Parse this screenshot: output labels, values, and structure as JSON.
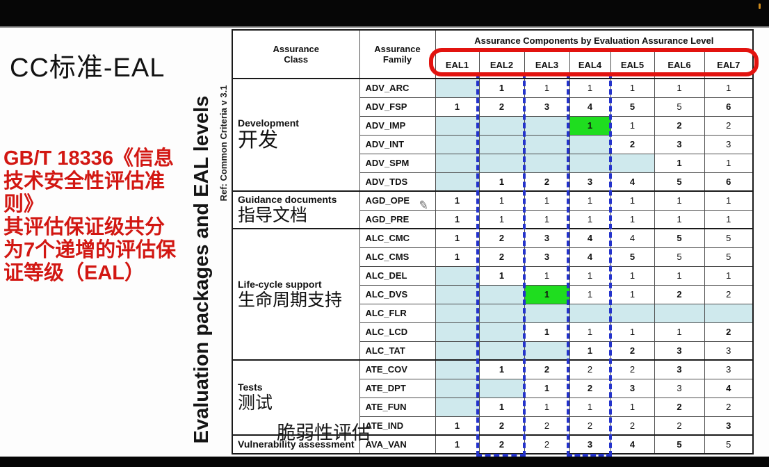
{
  "slide": {
    "title": "CC标准-EAL",
    "red_note": "GB/T 18336《信息\n技术安全性评估准\n则》\n其评估保证级共分\n为7个递增的评估保\n证等级（EAL）",
    "vertical_title": "Evaluation packages and EAL levels",
    "ref_note": "Ref: Common Criteria  v 3.1",
    "annotation_vuln": "脆弱性评估",
    "pencil_icon": "✎"
  },
  "colors": {
    "highlight_teal": "#cfe9ed",
    "highlight_green": "#1fdd1f",
    "red_box": "#e2130f",
    "red_text": "#d21712",
    "blue_dash": "#2433cc"
  },
  "table": {
    "col_class": "Assurance\nClass",
    "col_family": "Assurance\nFamily",
    "header_top": "Assurance Components by Evaluation Assurance Level",
    "eal_levels": [
      "EAL1",
      "EAL2",
      "EAL3",
      "EAL4",
      "EAL5",
      "EAL6",
      "EAL7"
    ],
    "groups": [
      {
        "name_en": "Development",
        "name_zh": "开发",
        "zh_big": true,
        "rows": [
          {
            "family": "ADV_ARC",
            "cells": [
              {
                "v": "",
                "bg": "teal"
              },
              {
                "v": "1",
                "b": 1
              },
              {
                "v": "1"
              },
              {
                "v": "1"
              },
              {
                "v": "1"
              },
              {
                "v": "1"
              },
              {
                "v": "1"
              }
            ]
          },
          {
            "family": "ADV_FSP",
            "cells": [
              {
                "v": "1",
                "b": 1
              },
              {
                "v": "2",
                "b": 1
              },
              {
                "v": "3",
                "b": 1
              },
              {
                "v": "4",
                "b": 1
              },
              {
                "v": "5",
                "b": 1
              },
              {
                "v": "5"
              },
              {
                "v": "6",
                "b": 1
              }
            ]
          },
          {
            "family": "ADV_IMP",
            "cells": [
              {
                "v": "",
                "bg": "teal"
              },
              {
                "v": "",
                "bg": "teal"
              },
              {
                "v": "",
                "bg": "teal"
              },
              {
                "v": "1",
                "b": 1,
                "bg": "green"
              },
              {
                "v": "1"
              },
              {
                "v": "2",
                "b": 1
              },
              {
                "v": "2"
              }
            ]
          },
          {
            "family": "ADV_INT",
            "cells": [
              {
                "v": "",
                "bg": "teal"
              },
              {
                "v": "",
                "bg": "teal"
              },
              {
                "v": "",
                "bg": "teal"
              },
              {
                "v": "",
                "bg": "teal"
              },
              {
                "v": "2",
                "b": 1
              },
              {
                "v": "3",
                "b": 1
              },
              {
                "v": "3"
              }
            ]
          },
          {
            "family": "ADV_SPM",
            "cells": [
              {
                "v": "",
                "bg": "teal"
              },
              {
                "v": "",
                "bg": "teal"
              },
              {
                "v": "",
                "bg": "teal"
              },
              {
                "v": "",
                "bg": "teal"
              },
              {
                "v": "",
                "bg": "teal"
              },
              {
                "v": "1",
                "b": 1
              },
              {
                "v": "1"
              }
            ]
          },
          {
            "family": "ADV_TDS",
            "cells": [
              {
                "v": "",
                "bg": "teal"
              },
              {
                "v": "1",
                "b": 1
              },
              {
                "v": "2",
                "b": 1
              },
              {
                "v": "3",
                "b": 1
              },
              {
                "v": "4",
                "b": 1
              },
              {
                "v": "5",
                "b": 1
              },
              {
                "v": "6",
                "b": 1
              }
            ]
          }
        ]
      },
      {
        "name_en": "Guidance documents",
        "name_zh": "指导文档",
        "rows": [
          {
            "family": "AGD_OPE",
            "cells": [
              {
                "v": "1",
                "b": 1
              },
              {
                "v": "1"
              },
              {
                "v": "1"
              },
              {
                "v": "1"
              },
              {
                "v": "1"
              },
              {
                "v": "1"
              },
              {
                "v": "1"
              }
            ]
          },
          {
            "family": "AGD_PRE",
            "cells": [
              {
                "v": "1",
                "b": 1
              },
              {
                "v": "1"
              },
              {
                "v": "1"
              },
              {
                "v": "1"
              },
              {
                "v": "1"
              },
              {
                "v": "1"
              },
              {
                "v": "1"
              }
            ]
          }
        ]
      },
      {
        "name_en": "Life-cycle support",
        "name_zh": "生命周期支持",
        "rows": [
          {
            "family": "ALC_CMC",
            "cells": [
              {
                "v": "1",
                "b": 1
              },
              {
                "v": "2",
                "b": 1
              },
              {
                "v": "3",
                "b": 1
              },
              {
                "v": "4",
                "b": 1
              },
              {
                "v": "4"
              },
              {
                "v": "5",
                "b": 1
              },
              {
                "v": "5"
              }
            ]
          },
          {
            "family": "ALC_CMS",
            "cells": [
              {
                "v": "1",
                "b": 1
              },
              {
                "v": "2",
                "b": 1
              },
              {
                "v": "3",
                "b": 1
              },
              {
                "v": "4",
                "b": 1
              },
              {
                "v": "5",
                "b": 1
              },
              {
                "v": "5"
              },
              {
                "v": "5"
              }
            ]
          },
          {
            "family": "ALC_DEL",
            "cells": [
              {
                "v": "",
                "bg": "teal"
              },
              {
                "v": "1",
                "b": 1
              },
              {
                "v": "1"
              },
              {
                "v": "1"
              },
              {
                "v": "1"
              },
              {
                "v": "1"
              },
              {
                "v": "1"
              }
            ]
          },
          {
            "family": "ALC_DVS",
            "cells": [
              {
                "v": "",
                "bg": "teal"
              },
              {
                "v": "",
                "bg": "teal"
              },
              {
                "v": "1",
                "b": 1,
                "bg": "green"
              },
              {
                "v": "1"
              },
              {
                "v": "1"
              },
              {
                "v": "2",
                "b": 1
              },
              {
                "v": "2"
              }
            ]
          },
          {
            "family": "ALC_FLR",
            "cells": [
              {
                "v": "",
                "bg": "teal"
              },
              {
                "v": "",
                "bg": "teal"
              },
              {
                "v": "",
                "bg": "teal"
              },
              {
                "v": "",
                "bg": "teal"
              },
              {
                "v": "",
                "bg": "teal"
              },
              {
                "v": "",
                "bg": "teal"
              },
              {
                "v": "",
                "bg": "teal"
              }
            ]
          },
          {
            "family": "ALC_LCD",
            "cells": [
              {
                "v": "",
                "bg": "teal"
              },
              {
                "v": "",
                "bg": "teal"
              },
              {
                "v": "1",
                "b": 1
              },
              {
                "v": "1"
              },
              {
                "v": "1"
              },
              {
                "v": "1"
              },
              {
                "v": "2",
                "b": 1
              }
            ]
          },
          {
            "family": "ALC_TAT",
            "cells": [
              {
                "v": "",
                "bg": "teal"
              },
              {
                "v": "",
                "bg": "teal"
              },
              {
                "v": "",
                "bg": "teal"
              },
              {
                "v": "1",
                "b": 1
              },
              {
                "v": "2",
                "b": 1
              },
              {
                "v": "3",
                "b": 1
              },
              {
                "v": "3"
              }
            ]
          }
        ]
      },
      {
        "name_en": "Tests",
        "name_zh": "测试",
        "rows": [
          {
            "family": "ATE_COV",
            "cells": [
              {
                "v": "",
                "bg": "teal"
              },
              {
                "v": "1",
                "b": 1
              },
              {
                "v": "2",
                "b": 1
              },
              {
                "v": "2"
              },
              {
                "v": "2"
              },
              {
                "v": "3",
                "b": 1
              },
              {
                "v": "3"
              }
            ]
          },
          {
            "family": "ATE_DPT",
            "cells": [
              {
                "v": "",
                "bg": "teal"
              },
              {
                "v": "",
                "bg": "teal"
              },
              {
                "v": "1",
                "b": 1
              },
              {
                "v": "2",
                "b": 1
              },
              {
                "v": "3",
                "b": 1
              },
              {
                "v": "3"
              },
              {
                "v": "4",
                "b": 1
              }
            ]
          },
          {
            "family": "ATE_FUN",
            "cells": [
              {
                "v": "",
                "bg": "teal"
              },
              {
                "v": "1",
                "b": 1
              },
              {
                "v": "1"
              },
              {
                "v": "1"
              },
              {
                "v": "1"
              },
              {
                "v": "2",
                "b": 1
              },
              {
                "v": "2"
              }
            ]
          },
          {
            "family": "ATE_IND",
            "cells": [
              {
                "v": "1",
                "b": 1
              },
              {
                "v": "2",
                "b": 1
              },
              {
                "v": "2"
              },
              {
                "v": "2"
              },
              {
                "v": "2"
              },
              {
                "v": "2"
              },
              {
                "v": "3",
                "b": 1
              }
            ]
          }
        ]
      },
      {
        "name_en": "Vulnerability assessment",
        "name_zh": "",
        "rows": [
          {
            "family": "AVA_VAN",
            "cells": [
              {
                "v": "1",
                "b": 1
              },
              {
                "v": "2",
                "b": 1
              },
              {
                "v": "2"
              },
              {
                "v": "3",
                "b": 1
              },
              {
                "v": "4",
                "b": 1
              },
              {
                "v": "5",
                "b": 1
              },
              {
                "v": "5"
              }
            ]
          }
        ]
      }
    ]
  }
}
